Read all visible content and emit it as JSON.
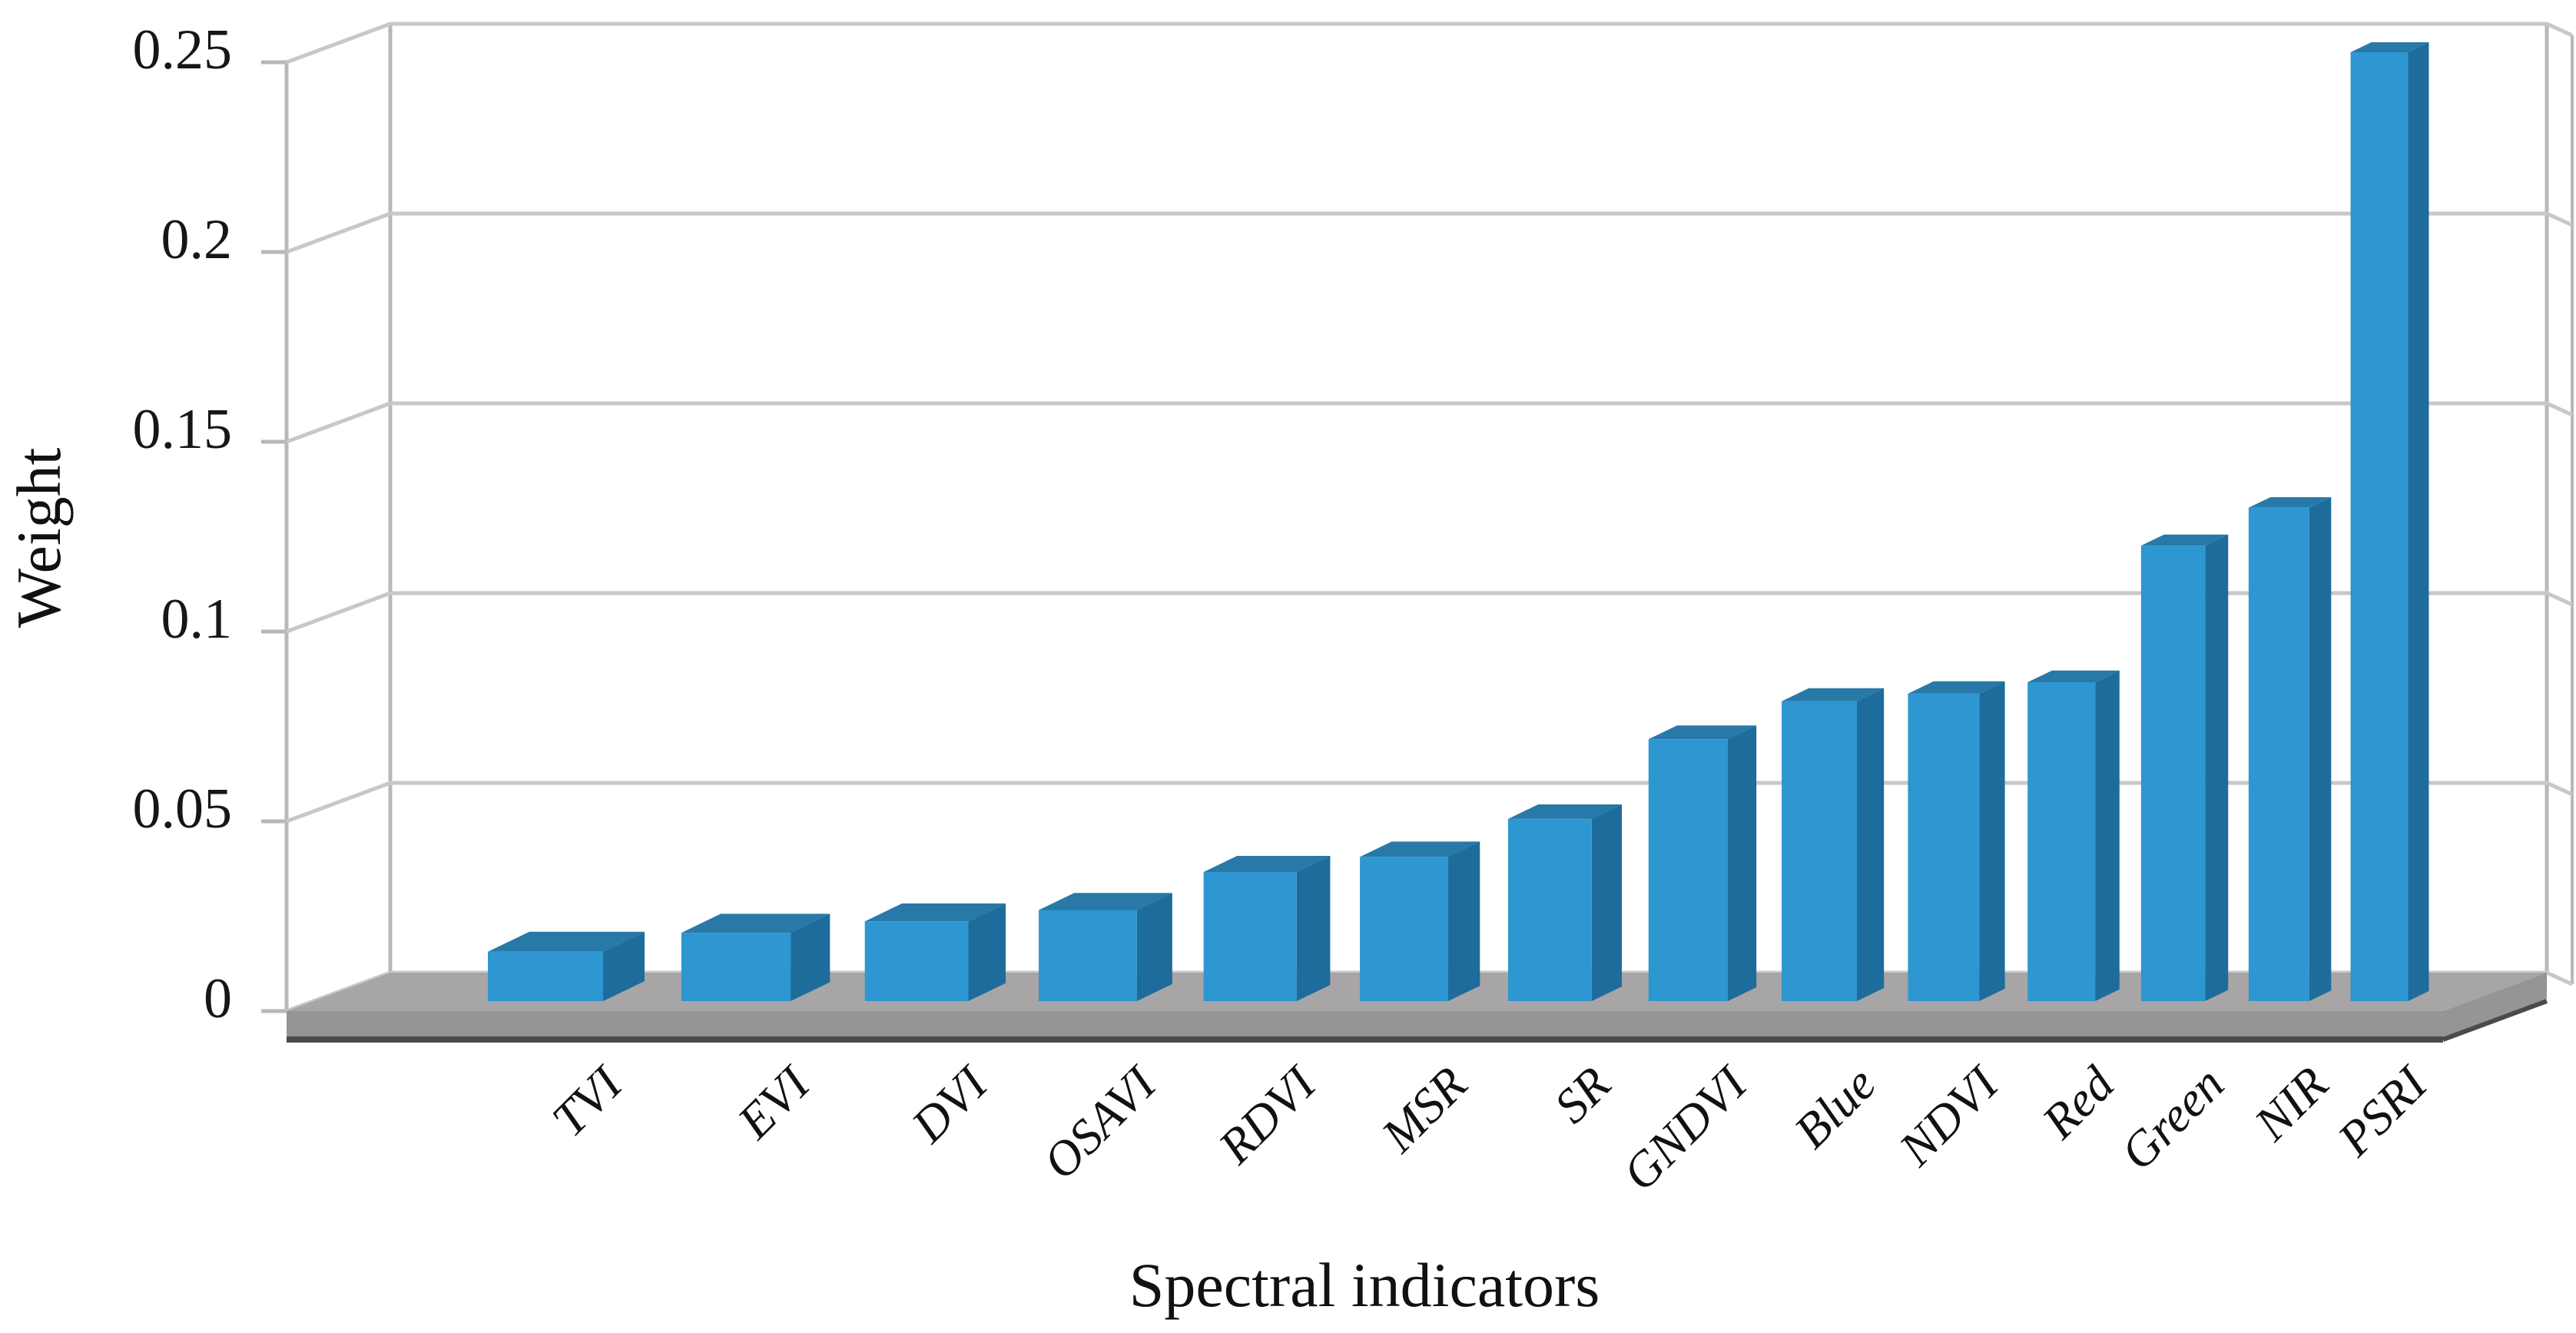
{
  "figure": {
    "background": "#ffffff",
    "kind": "3d-column-chart"
  },
  "chart_data": {
    "type": "bar",
    "style": "excel-3d-column",
    "title": "",
    "xlabel": "Spectral indicators",
    "ylabel": "Weight",
    "categories": [
      "TVI",
      "EVI",
      "DVI",
      "OSAVI",
      "RDVI",
      "MSR",
      "SR",
      "GNDVI",
      "Blue",
      "NDVI",
      "Red",
      "Green",
      "NIR",
      "PSRI"
    ],
    "values": [
      0.013,
      0.018,
      0.021,
      0.024,
      0.034,
      0.038,
      0.048,
      0.069,
      0.079,
      0.081,
      0.084,
      0.12,
      0.13,
      0.25
    ],
    "series_name": "Weight",
    "ylim": [
      0,
      0.25
    ],
    "ytick_step": 0.05,
    "ytick_labels": [
      "0",
      "0.05",
      "0.1",
      "0.15",
      "0.2",
      "0.25"
    ],
    "grid": "horizontal-back-wall",
    "legend": "none",
    "category_label_rotation_deg": -45,
    "category_label_style": "italic",
    "colors": {
      "bar_front": "#2E96D1",
      "bar_top": "#2879A8",
      "bar_side": "#1D6C9C",
      "floor_top": "#A7A5A5",
      "floor_front": "#969494",
      "floor_edge": "#4C4A4A",
      "wall_line": "#B9B7B7",
      "gridline": "#C9C7C7",
      "text": "#111111"
    }
  }
}
